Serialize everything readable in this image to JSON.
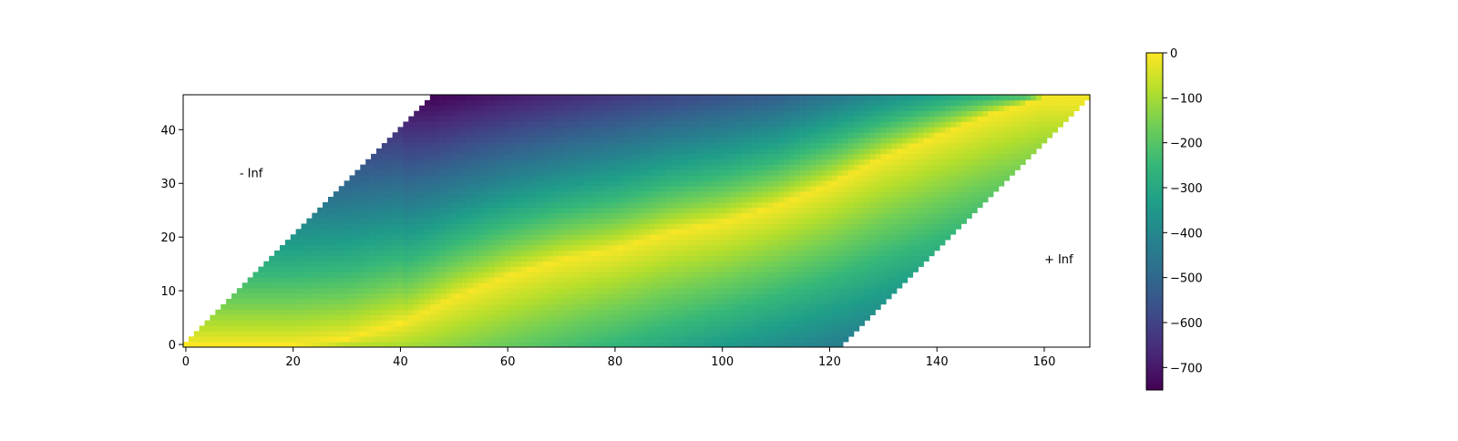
{
  "chart_data": {
    "type": "heatmap",
    "title": "",
    "xlabel": "",
    "ylabel": "",
    "xlim": [
      -0.5,
      168.5
    ],
    "ylim": [
      -0.5,
      46.5
    ],
    "x_ticks": [
      0,
      20,
      40,
      60,
      80,
      100,
      120,
      140,
      160
    ],
    "y_ticks": [
      0,
      10,
      20,
      30,
      40
    ],
    "grid": false,
    "colormap": "viridis",
    "colorbar": {
      "range": [
        -750,
        0
      ],
      "ticks": [
        0,
        -100,
        -200,
        -300,
        -400,
        -500,
        -600,
        -700
      ],
      "placement": "right"
    },
    "band": {
      "rows": 47,
      "cols": 169,
      "left_edge_start": 0,
      "left_edge_end": 46,
      "right_edge_start": 123,
      "right_edge_end": 169
    },
    "ridge": [
      [
        0,
        0
      ],
      [
        10,
        0
      ],
      [
        20,
        0
      ],
      [
        30,
        1
      ],
      [
        40,
        4
      ],
      [
        50,
        9
      ],
      [
        60,
        13
      ],
      [
        70,
        16
      ],
      [
        80,
        18
      ],
      [
        90,
        21
      ],
      [
        100,
        23
      ],
      [
        110,
        26
      ],
      [
        120,
        30
      ],
      [
        130,
        35
      ],
      [
        140,
        39
      ],
      [
        150,
        43
      ],
      [
        160,
        46
      ],
      [
        168,
        46
      ]
    ],
    "values": [
      {
        "x": 0,
        "y": 0,
        "value": 0
      },
      {
        "x": 40,
        "y": 4,
        "value": -10
      },
      {
        "x": 80,
        "y": 18,
        "value": -40
      },
      {
        "x": 120,
        "y": 0,
        "value": -420
      },
      {
        "x": 120,
        "y": 30,
        "value": -100
      },
      {
        "x": 60,
        "y": 30,
        "value": -460
      },
      {
        "x": 50,
        "y": 45,
        "value": -740
      },
      {
        "x": 100,
        "y": 45,
        "value": -520
      },
      {
        "x": 165,
        "y": 46,
        "value": -120
      }
    ],
    "annotations": [
      {
        "text": "- Inf",
        "x": 10,
        "y": 32
      },
      {
        "text": "+ Inf",
        "x": 160,
        "y": 16
      }
    ]
  }
}
